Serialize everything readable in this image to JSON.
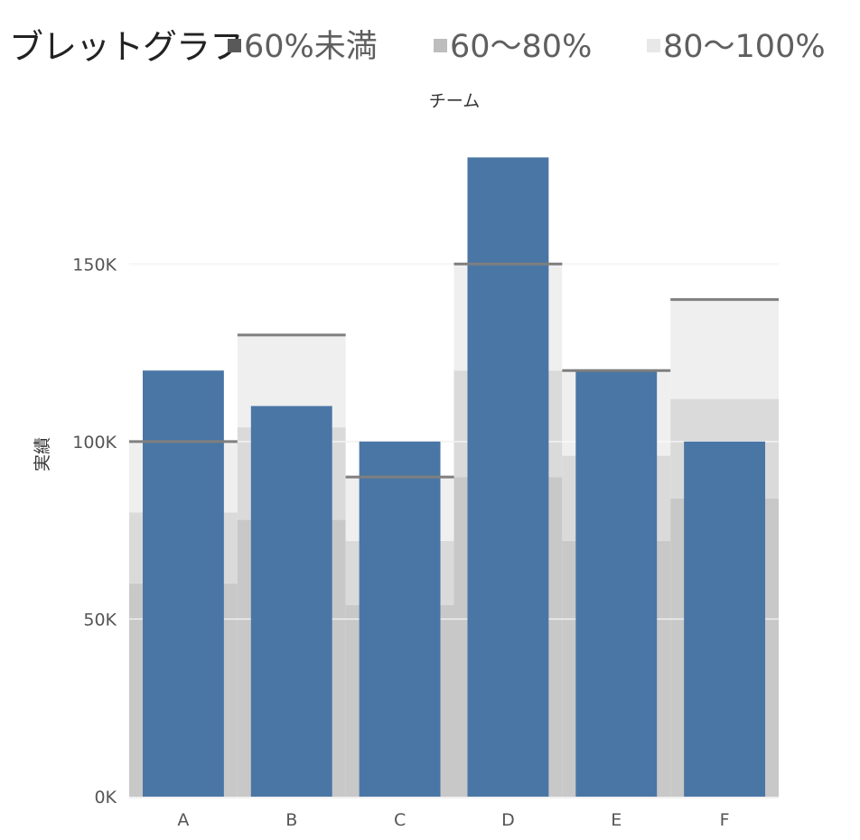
{
  "title": "ブレットグラフ",
  "legend": [
    {
      "label": "60%未満",
      "color": "#595959"
    },
    {
      "label": "60〜80%",
      "color": "#bdbdbd"
    },
    {
      "label": "80〜100%",
      "color": "#e8e8e8"
    }
  ],
  "chart_data": {
    "type": "bar",
    "subtype": "bullet",
    "title": "ブレットグラフ",
    "column_header": "チーム",
    "ylabel": "実績",
    "categories": [
      "A",
      "B",
      "C",
      "D",
      "E",
      "F"
    ],
    "values": [
      120000,
      110000,
      100000,
      180000,
      120000,
      100000
    ],
    "targets": [
      100000,
      130000,
      90000,
      150000,
      120000,
      140000
    ],
    "bands": [
      {
        "label": "60%未満",
        "fraction": 0.6
      },
      {
        "label": "60〜80%",
        "fraction": 0.8
      },
      {
        "label": "80〜100%",
        "fraction": 1.0
      }
    ],
    "ylim": [
      0,
      190000
    ],
    "yticks": [
      0,
      50000,
      100000,
      150000
    ],
    "ytick_labels": [
      "0K",
      "50K",
      "100K",
      "150K"
    ],
    "grid": true,
    "legend_position": "top",
    "colors": {
      "bar": "#4a76a5",
      "band_low": "#c8c8c8",
      "band_mid": "#dadada",
      "band_high": "#efefef",
      "target_line": "#7f7f7f",
      "grid": "#e7e7e7"
    }
  }
}
